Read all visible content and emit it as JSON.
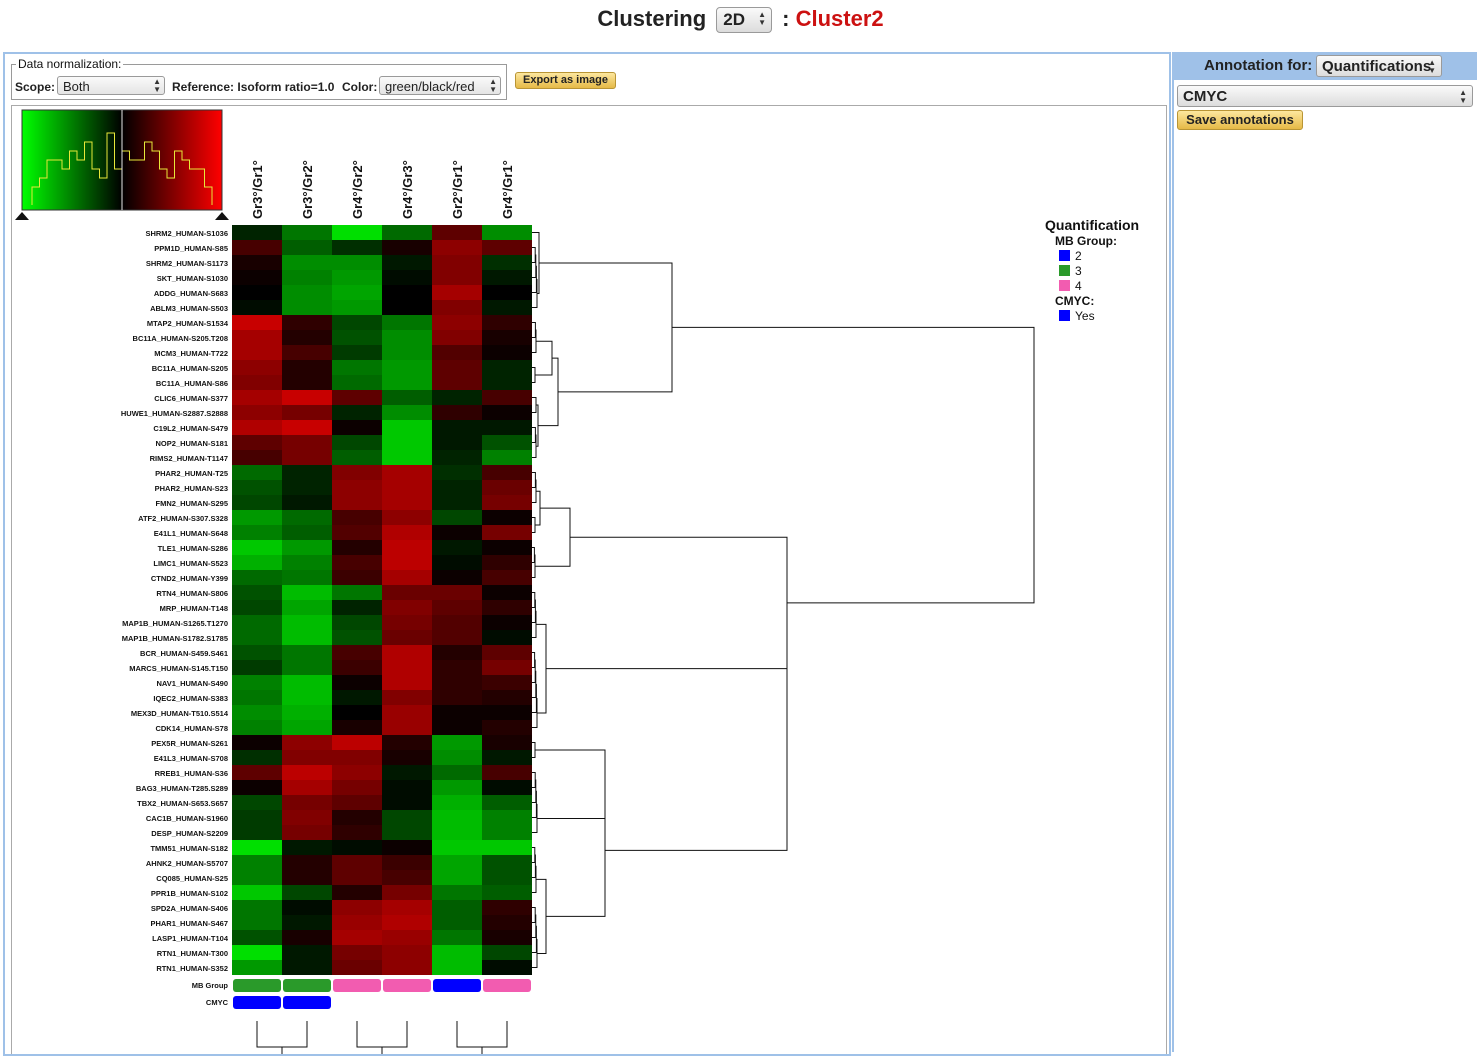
{
  "header": {
    "title_prefix": "Clustering",
    "mode_value": "2D",
    "separator": ":",
    "cluster_name": "Cluster2"
  },
  "normalization": {
    "legend": "Data normalization:",
    "scope_label": "Scope:",
    "scope_value": "Both",
    "reference_label": "Reference: Isoform ratio=1.0",
    "color_label": "Color:",
    "color_value": "green/black/red",
    "export_label": "Export as image"
  },
  "annotation": {
    "label": "Annotation for:",
    "type_value": "Quantifications",
    "protein_value": "CMYC",
    "save_label": "Save annotations"
  },
  "legend": {
    "title": "Quantification",
    "groups": [
      {
        "label": "MB Group:",
        "items": [
          {
            "label": "2",
            "color": "#0000ff"
          },
          {
            "label": "3",
            "color": "#2a9a2a"
          },
          {
            "label": "4",
            "color": "#f25cb0"
          }
        ]
      },
      {
        "label": "CMYC:",
        "items": [
          {
            "label": "Yes",
            "color": "#0000ff"
          }
        ]
      }
    ]
  },
  "colors": {
    "scale_green": "#00ff00",
    "scale_black": "#000000",
    "scale_red": "#ff0000",
    "accent_red": "#cc1111",
    "panel_border": "#9fc1e8"
  },
  "chart_data": {
    "type": "heatmap",
    "value_range": [
      -1,
      1
    ],
    "color_scale": [
      "green",
      "black",
      "red"
    ],
    "columns": [
      "Gr3°/Gr1°",
      "Gr3°/Gr2°",
      "Gr4°/Gr2°",
      "Gr4°/Gr3°",
      "Gr2°/Gr1°",
      "Gr4°/Gr1°"
    ],
    "rows": [
      "SHRM2_HUMAN-S1036",
      "PPM1D_HUMAN-S85",
      "SHRM2_HUMAN-S1173",
      "SKT_HUMAN-S1030",
      "ADDG_HUMAN-S683",
      "ABLM3_HUMAN-S503",
      "MTAP2_HUMAN-S1534",
      "BC11A_HUMAN-S205.T208",
      "MCM3_HUMAN-T722",
      "BC11A_HUMAN-S205",
      "BC11A_HUMAN-S86",
      "CLIC6_HUMAN-S377",
      "HUWE1_HUMAN-S2887.S2888",
      "C19L2_HUMAN-S479",
      "NOP2_HUMAN-S181",
      "RIMS2_HUMAN-T1147",
      "PHAR2_HUMAN-T25",
      "PHAR2_HUMAN-S23",
      "FMN2_HUMAN-S295",
      "ATF2_HUMAN-S307.S328",
      "E41L1_HUMAN-S648",
      "TLE1_HUMAN-S286",
      "LIMC1_HUMAN-S523",
      "CTND2_HUMAN-Y399",
      "RTN4_HUMAN-S806",
      "MRP_HUMAN-T148",
      "MAP1B_HUMAN-S1265.T1270",
      "MAP1B_HUMAN-S1782.S1785",
      "BCR_HUMAN-S459.S461",
      "MARCS_HUMAN-S145.T150",
      "NAV1_HUMAN-S490",
      "IQEC2_HUMAN-S383",
      "MEX3D_HUMAN-T510.S514",
      "CDK14_HUMAN-S78",
      "PEX5R_HUMAN-S261",
      "E41L3_HUMAN-S708",
      "RREB1_HUMAN-S36",
      "BAG3_HUMAN-T285.S289",
      "TBX2_HUMAN-S653.S657",
      "CAC1B_HUMAN-S1960",
      "DESP_HUMAN-S2209",
      "TMM51_HUMAN-S182",
      "AHNK2_HUMAN-S5707",
      "CQ085_HUMAN-S25",
      "PPR1B_HUMAN-S102",
      "SPD2A_HUMAN-S406",
      "PHAR1_HUMAN-S467",
      "LASP1_HUMAN-T104",
      "RTN1_HUMAN-T300",
      "RTN1_HUMAN-S352"
    ],
    "values": [
      [
        -0.15,
        -0.5,
        -0.95,
        -0.45,
        0.4,
        -0.6
      ],
      [
        0.3,
        -0.4,
        -0.2,
        0.1,
        0.6,
        0.4
      ],
      [
        0.1,
        -0.6,
        -0.6,
        -0.1,
        0.55,
        -0.2
      ],
      [
        0.05,
        -0.55,
        -0.65,
        -0.05,
        0.55,
        -0.1
      ],
      [
        0.0,
        -0.6,
        -0.7,
        0.0,
        0.7,
        0.0
      ],
      [
        -0.05,
        -0.6,
        -0.65,
        0.0,
        0.55,
        -0.1
      ],
      [
        0.85,
        0.2,
        -0.3,
        -0.5,
        0.6,
        0.2
      ],
      [
        0.7,
        0.15,
        -0.35,
        -0.6,
        0.55,
        0.1
      ],
      [
        0.7,
        0.3,
        -0.25,
        -0.6,
        0.35,
        0.05
      ],
      [
        0.6,
        0.15,
        -0.5,
        -0.65,
        0.4,
        -0.15
      ],
      [
        0.55,
        0.15,
        -0.45,
        -0.65,
        0.4,
        -0.15
      ],
      [
        0.7,
        0.85,
        0.4,
        -0.4,
        -0.15,
        0.3
      ],
      [
        0.6,
        0.5,
        -0.15,
        -0.6,
        0.2,
        0.05
      ],
      [
        0.75,
        0.85,
        0.05,
        -0.85,
        -0.1,
        -0.1
      ],
      [
        0.4,
        0.5,
        -0.3,
        -0.85,
        -0.1,
        -0.35
      ],
      [
        0.3,
        0.5,
        -0.4,
        -0.85,
        -0.15,
        -0.55
      ],
      [
        -0.45,
        -0.15,
        0.55,
        0.7,
        -0.2,
        0.3
      ],
      [
        -0.35,
        -0.15,
        0.6,
        0.7,
        -0.15,
        0.45
      ],
      [
        -0.3,
        -0.1,
        0.6,
        0.7,
        -0.15,
        0.5
      ],
      [
        -0.65,
        -0.45,
        0.3,
        0.6,
        -0.3,
        0.05
      ],
      [
        -0.55,
        -0.4,
        0.35,
        0.75,
        0.05,
        0.5
      ],
      [
        -0.85,
        -0.65,
        0.15,
        0.8,
        -0.1,
        0.05
      ],
      [
        -0.75,
        -0.55,
        0.3,
        0.8,
        -0.05,
        0.2
      ],
      [
        -0.45,
        -0.5,
        0.25,
        0.7,
        0.05,
        0.3
      ],
      [
        -0.35,
        -0.8,
        -0.5,
        0.45,
        0.45,
        0.05
      ],
      [
        -0.3,
        -0.7,
        -0.15,
        0.55,
        0.4,
        0.2
      ],
      [
        -0.45,
        -0.8,
        -0.3,
        0.5,
        0.35,
        0.05
      ],
      [
        -0.45,
        -0.8,
        -0.35,
        0.45,
        0.35,
        -0.05
      ],
      [
        -0.35,
        -0.5,
        0.3,
        0.75,
        0.15,
        0.4
      ],
      [
        -0.25,
        -0.5,
        0.25,
        0.75,
        0.2,
        0.5
      ],
      [
        -0.55,
        -0.8,
        0.05,
        0.75,
        0.2,
        0.25
      ],
      [
        -0.5,
        -0.8,
        -0.1,
        0.55,
        0.2,
        0.15
      ],
      [
        -0.6,
        -0.75,
        0.0,
        0.65,
        0.05,
        0.05
      ],
      [
        -0.55,
        -0.7,
        0.1,
        0.65,
        0.05,
        0.15
      ],
      [
        0.05,
        0.6,
        0.8,
        0.15,
        -0.65,
        0.1
      ],
      [
        -0.2,
        0.55,
        0.55,
        0.1,
        -0.6,
        -0.1
      ],
      [
        0.4,
        0.8,
        0.6,
        -0.1,
        -0.45,
        0.3
      ],
      [
        0.05,
        0.7,
        0.5,
        -0.05,
        -0.65,
        -0.05
      ],
      [
        -0.3,
        0.5,
        0.4,
        -0.05,
        -0.75,
        -0.4
      ],
      [
        -0.25,
        0.55,
        0.15,
        -0.3,
        -0.8,
        -0.55
      ],
      [
        -0.25,
        0.5,
        0.2,
        -0.3,
        -0.8,
        -0.55
      ],
      [
        -0.95,
        -0.1,
        -0.05,
        0.05,
        -0.85,
        -0.85
      ],
      [
        -0.55,
        0.15,
        0.4,
        0.25,
        -0.7,
        -0.35
      ],
      [
        -0.55,
        0.15,
        0.4,
        0.3,
        -0.7,
        -0.35
      ],
      [
        -0.85,
        -0.3,
        0.15,
        0.5,
        -0.5,
        -0.4
      ],
      [
        -0.5,
        -0.05,
        0.6,
        0.7,
        -0.4,
        0.2
      ],
      [
        -0.5,
        -0.1,
        0.65,
        0.75,
        -0.4,
        0.15
      ],
      [
        -0.35,
        0.1,
        0.7,
        0.65,
        -0.5,
        0.1
      ],
      [
        -0.95,
        -0.1,
        0.5,
        0.6,
        -0.8,
        -0.3
      ],
      [
        -0.65,
        -0.1,
        0.45,
        0.6,
        -0.8,
        -0.05
      ]
    ],
    "histogram_counts": [
      2,
      3,
      5,
      5,
      4,
      6,
      5,
      7,
      4,
      3,
      8,
      4,
      6,
      5,
      5,
      7,
      6,
      4,
      3,
      6,
      5,
      4,
      4,
      2
    ],
    "annotation_tracks": [
      {
        "label": "MB Group",
        "values": [
          "3",
          "3",
          "4",
          "4",
          "2",
          "4"
        ]
      },
      {
        "label": "CMYC",
        "values": [
          "Yes",
          "Yes",
          null,
          null,
          null,
          null
        ]
      }
    ]
  }
}
